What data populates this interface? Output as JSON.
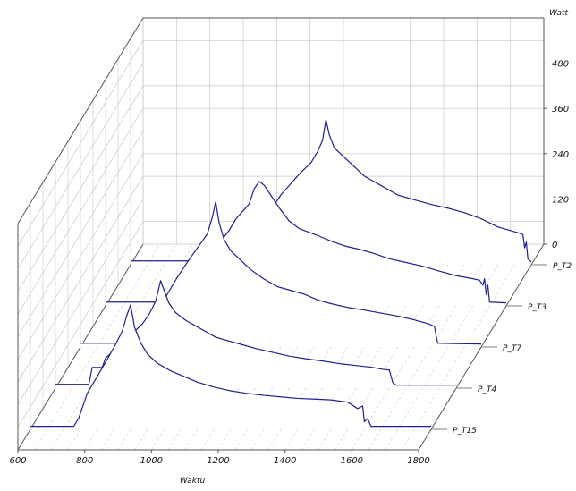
{
  "chart_data": {
    "type": "line",
    "projection": "3d-waterfall",
    "xlabel": "Waktu",
    "zlabel": "Watt",
    "xlim": [
      600,
      1800
    ],
    "zlim": [
      0,
      600
    ],
    "x_ticks": [
      "600",
      "800",
      "1000",
      "1200",
      "1400",
      "1600",
      "1800"
    ],
    "z_ticks": [
      "0",
      "120",
      "240",
      "360",
      "480"
    ],
    "grid": true,
    "line_color": "#1f1f8f",
    "series": [
      {
        "name": "P_T2",
        "points": [
          [
            600,
            10
          ],
          [
            940,
            10
          ],
          [
            960,
            55
          ],
          [
            990,
            95
          ],
          [
            1020,
            145
          ],
          [
            1050,
            185
          ],
          [
            1080,
            215
          ],
          [
            1110,
            245
          ],
          [
            1140,
            270
          ],
          [
            1160,
            300
          ],
          [
            1175,
            330
          ],
          [
            1185,
            385
          ],
          [
            1195,
            345
          ],
          [
            1210,
            310
          ],
          [
            1240,
            285
          ],
          [
            1270,
            260
          ],
          [
            1300,
            235
          ],
          [
            1330,
            220
          ],
          [
            1360,
            205
          ],
          [
            1400,
            185
          ],
          [
            1450,
            172
          ],
          [
            1500,
            160
          ],
          [
            1550,
            150
          ],
          [
            1600,
            138
          ],
          [
            1650,
            122
          ],
          [
            1700,
            100
          ],
          [
            1740,
            90
          ],
          [
            1760,
            85
          ],
          [
            1775,
            80
          ],
          [
            1780,
            45
          ],
          [
            1785,
            60
          ],
          [
            1790,
            15
          ],
          [
            1800,
            8
          ]
        ]
      },
      {
        "name": "P_T3",
        "points": [
          [
            600,
            10
          ],
          [
            860,
            10
          ],
          [
            880,
            60
          ],
          [
            910,
            110
          ],
          [
            940,
            165
          ],
          [
            970,
            200
          ],
          [
            990,
            230
          ],
          [
            1010,
            250
          ],
          [
            1030,
            270
          ],
          [
            1045,
            310
          ],
          [
            1060,
            330
          ],
          [
            1075,
            320
          ],
          [
            1090,
            300
          ],
          [
            1120,
            260
          ],
          [
            1150,
            225
          ],
          [
            1180,
            205
          ],
          [
            1210,
            195
          ],
          [
            1240,
            185
          ],
          [
            1280,
            170
          ],
          [
            1320,
            158
          ],
          [
            1360,
            150
          ],
          [
            1400,
            140
          ],
          [
            1450,
            125
          ],
          [
            1500,
            115
          ],
          [
            1550,
            105
          ],
          [
            1600,
            92
          ],
          [
            1650,
            80
          ],
          [
            1700,
            72
          ],
          [
            1720,
            68
          ],
          [
            1730,
            55
          ],
          [
            1735,
            72
          ],
          [
            1740,
            30
          ],
          [
            1745,
            55
          ],
          [
            1750,
            10
          ],
          [
            1800,
            8
          ]
        ]
      },
      {
        "name": "P_T7",
        "points": [
          [
            600,
            10
          ],
          [
            780,
            10
          ],
          [
            800,
            40
          ],
          [
            830,
            90
          ],
          [
            860,
            140
          ],
          [
            890,
            185
          ],
          [
            920,
            225
          ],
          [
            940,
            250
          ],
          [
            960,
            275
          ],
          [
            980,
            300
          ],
          [
            995,
            345
          ],
          [
            1005,
            385
          ],
          [
            1015,
            330
          ],
          [
            1030,
            285
          ],
          [
            1050,
            255
          ],
          [
            1080,
            230
          ],
          [
            1110,
            205
          ],
          [
            1150,
            180
          ],
          [
            1190,
            160
          ],
          [
            1230,
            150
          ],
          [
            1270,
            140
          ],
          [
            1310,
            125
          ],
          [
            1350,
            115
          ],
          [
            1400,
            105
          ],
          [
            1450,
            98
          ],
          [
            1500,
            90
          ],
          [
            1550,
            82
          ],
          [
            1600,
            72
          ],
          [
            1640,
            62
          ],
          [
            1660,
            55
          ],
          [
            1665,
            30
          ],
          [
            1670,
            10
          ],
          [
            1800,
            8
          ]
        ]
      },
      {
        "name": "P_T4",
        "points": [
          [
            600,
            10
          ],
          [
            700,
            10
          ],
          [
            710,
            55
          ],
          [
            740,
            55
          ],
          [
            750,
            80
          ],
          [
            770,
            95
          ],
          [
            800,
            120
          ],
          [
            830,
            145
          ],
          [
            860,
            170
          ],
          [
            880,
            195
          ],
          [
            900,
            230
          ],
          [
            915,
            285
          ],
          [
            925,
            260
          ],
          [
            940,
            225
          ],
          [
            960,
            200
          ],
          [
            990,
            180
          ],
          [
            1020,
            165
          ],
          [
            1050,
            150
          ],
          [
            1080,
            135
          ],
          [
            1120,
            125
          ],
          [
            1160,
            115
          ],
          [
            1200,
            105
          ],
          [
            1250,
            95
          ],
          [
            1300,
            85
          ],
          [
            1350,
            78
          ],
          [
            1400,
            72
          ],
          [
            1450,
            65
          ],
          [
            1500,
            60
          ],
          [
            1550,
            55
          ],
          [
            1580,
            50
          ],
          [
            1600,
            48
          ],
          [
            1610,
            15
          ],
          [
            1620,
            8
          ],
          [
            1800,
            8
          ]
        ]
      },
      {
        "name": "P_T15",
        "points": [
          [
            600,
            8
          ],
          [
            730,
            8
          ],
          [
            745,
            30
          ],
          [
            770,
            95
          ],
          [
            800,
            140
          ],
          [
            830,
            185
          ],
          [
            855,
            225
          ],
          [
            875,
            260
          ],
          [
            888,
            300
          ],
          [
            900,
            330
          ],
          [
            912,
            270
          ],
          [
            930,
            230
          ],
          [
            950,
            200
          ],
          [
            980,
            175
          ],
          [
            1020,
            155
          ],
          [
            1060,
            140
          ],
          [
            1100,
            125
          ],
          [
            1150,
            112
          ],
          [
            1200,
            102
          ],
          [
            1250,
            95
          ],
          [
            1300,
            90
          ],
          [
            1350,
            86
          ],
          [
            1400,
            82
          ],
          [
            1450,
            80
          ],
          [
            1500,
            78
          ],
          [
            1550,
            72
          ],
          [
            1580,
            55
          ],
          [
            1595,
            62
          ],
          [
            1600,
            20
          ],
          [
            1610,
            28
          ],
          [
            1620,
            8
          ],
          [
            1800,
            8
          ]
        ]
      }
    ]
  }
}
